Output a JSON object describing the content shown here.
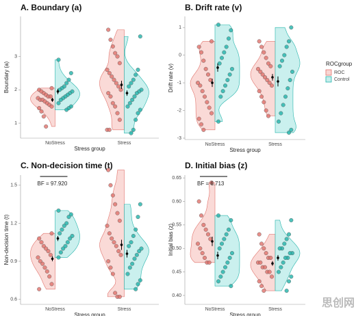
{
  "chart_data": [
    {
      "type": "raincloud",
      "title": "A. Boundary (a)",
      "xlabel": "Stress group",
      "ylabel": "Boundary (a)",
      "categories": [
        "NoStress",
        "Stress"
      ],
      "ylim": [
        0.55,
        4.2
      ],
      "yticks": [
        1,
        2,
        3
      ],
      "series": [
        {
          "color": "#e0726b",
          "fill": "#f9d6d3",
          "values": [
            [
              2.05,
              2.0,
              1.95,
              1.9,
              1.85,
              1.8,
              1.8,
              1.75,
              1.7,
              1.7,
              1.65,
              1.6,
              1.55,
              1.5,
              1.45,
              1.35,
              1.2,
              0.9
            ],
            [
              3.8,
              3.5,
              3.3,
              3.1,
              3.0,
              2.8,
              2.6,
              2.5,
              2.4,
              2.3,
              2.2,
              2.1,
              2.0,
              1.9,
              1.8,
              1.6,
              1.5,
              1.3,
              1.1,
              0.8,
              0.8
            ]
          ],
          "means": [
            1.7,
            2.15
          ],
          "errors": [
            0.06,
            0.12
          ]
        },
        {
          "color": "#22b3aa",
          "fill": "#c4eeec",
          "values": [
            [
              2.9,
              2.5,
              2.3,
              2.2,
              2.1,
              2.05,
              2.0,
              1.95,
              1.9,
              1.85,
              1.8,
              1.75,
              1.7,
              1.6,
              1.5,
              1.45,
              1.4
            ],
            [
              3.6,
              2.6,
              2.45,
              2.3,
              2.2,
              2.1,
              2.0,
              1.95,
              1.9,
              1.8,
              1.7,
              1.6,
              1.5,
              1.4,
              1.3,
              1.1,
              0.8,
              0.7
            ]
          ],
          "means": [
            1.95,
            1.9
          ],
          "errors": [
            0.08,
            0.08
          ]
        }
      ]
    },
    {
      "type": "raincloud",
      "title": "B. Drift rate (v)",
      "xlabel": "Stress group",
      "ylabel": "Drift rate (v)",
      "categories": [
        "NoStress",
        "Stress"
      ],
      "ylim": [
        -3.05,
        1.4
      ],
      "yticks": [
        -3,
        -2,
        -1,
        0,
        1
      ],
      "series": [
        {
          "color": "#e0726b",
          "fill": "#f9d6d3",
          "values": [
            [
              0.5,
              0.3,
              0.1,
              -0.2,
              -0.5,
              -0.7,
              -0.9,
              -1.0,
              -1.1,
              -1.3,
              -1.5,
              -1.7,
              -1.9,
              -2.1,
              -2.3,
              -2.5,
              -2.7
            ],
            [
              0.5,
              0.3,
              0.1,
              -0.1,
              -0.3,
              -0.4,
              -0.5,
              -0.6,
              -0.7,
              -0.8,
              -0.9,
              -1.0,
              -1.1,
              -1.3,
              -1.5,
              -1.7,
              -2.0,
              -2.2
            ]
          ],
          "means": [
            -1.0,
            -0.8
          ],
          "errors": [
            0.15,
            0.12
          ]
        },
        {
          "color": "#22b3aa",
          "fill": "#c4eeec",
          "values": [
            [
              1.1,
              0.9,
              0.6,
              0.3,
              0.1,
              -0.1,
              -0.3,
              -0.5,
              -0.7,
              -0.9,
              -1.1,
              -1.3,
              -1.5,
              -2.4
            ],
            [
              1.0,
              0.5,
              0.3,
              0.0,
              -0.2,
              -0.4,
              -0.6,
              -0.9,
              -1.2,
              -1.5,
              -1.8,
              -2.1,
              -2.4,
              -2.7,
              -2.8
            ]
          ],
          "means": [
            -0.45,
            -0.95
          ],
          "errors": [
            0.15,
            0.18
          ]
        }
      ]
    },
    {
      "type": "raincloud",
      "title": "C. Non-decision time (t)",
      "xlabel": "Stress group",
      "ylabel": "Non-decision time (t)",
      "categories": [
        "NoStress",
        "Stress"
      ],
      "ylim": [
        0.56,
        1.58
      ],
      "yticks": [
        0.6,
        0.9,
        1.2,
        1.5
      ],
      "annotation": "BF = 97.920",
      "series": [
        {
          "color": "#e0726b",
          "fill": "#f9d6d3",
          "values": [
            [
              1.12,
              1.08,
              1.05,
              1.02,
              1.0,
              0.98,
              0.95,
              0.93,
              0.9,
              0.88,
              0.85,
              0.82,
              0.78,
              0.72,
              0.68
            ],
            [
              1.62,
              1.5,
              1.42,
              1.35,
              1.28,
              1.22,
              1.18,
              1.12,
              1.08,
              1.05,
              1.02,
              0.98,
              0.95,
              0.9,
              0.85,
              0.8,
              0.65,
              0.62,
              0.62
            ]
          ],
          "means": [
            0.92,
            1.03
          ],
          "errors": [
            0.02,
            0.04
          ]
        },
        {
          "color": "#22b3aa",
          "fill": "#c4eeec",
          "values": [
            [
              1.3,
              1.27,
              1.25,
              1.2,
              1.18,
              1.15,
              1.12,
              1.1,
              1.08,
              1.05,
              1.02,
              1.0,
              0.97,
              0.93
            ],
            [
              1.35,
              1.25,
              1.15,
              1.1,
              1.05,
              1.02,
              1.0,
              0.98,
              0.95,
              0.92,
              0.88,
              0.85,
              0.8,
              0.75,
              0.72,
              0.68
            ]
          ],
          "means": [
            1.08,
            0.96
          ],
          "errors": [
            0.02,
            0.03
          ]
        }
      ]
    },
    {
      "type": "raincloud",
      "title": "D. Initial bias (z)",
      "xlabel": "Stress group",
      "ylabel": "Initial bias (z)",
      "categories": [
        "NoStress",
        "Stress"
      ],
      "ylim": [
        0.381,
        0.656
      ],
      "yticks": [
        {
          "value": 0.4,
          "label": "0.40"
        },
        0.45,
        {
          "value": 0.5,
          "label": "0.50"
        },
        0.55,
        {
          "value": 0.6,
          "label": "0.60"
        },
        0.65
      ],
      "annotation": "BF = 6.713",
      "series": [
        {
          "color": "#e0726b",
          "fill": "#f9d6d3",
          "values": [
            [
              0.64,
              0.6,
              0.57,
              0.55,
              0.54,
              0.53,
              0.52,
              0.51,
              0.5,
              0.49,
              0.48,
              0.47,
              0.47
            ],
            [
              0.53,
              0.51,
              0.5,
              0.49,
              0.48,
              0.48,
              0.47,
              0.47,
              0.46,
              0.46,
              0.45,
              0.45,
              0.44,
              0.43,
              0.42,
              0.41
            ]
          ],
          "means": [
            0.515,
            0.468
          ],
          "errors": [
            0.01,
            0.005
          ]
        },
        {
          "color": "#22b3aa",
          "fill": "#c4eeec",
          "values": [
            [
              0.57,
              0.56,
              0.54,
              0.53,
              0.52,
              0.51,
              0.5,
              0.49,
              0.48,
              0.47,
              0.46,
              0.45,
              0.44,
              0.43,
              0.42
            ],
            [
              0.56,
              0.53,
              0.52,
              0.51,
              0.5,
              0.5,
              0.49,
              0.49,
              0.48,
              0.48,
              0.47,
              0.46,
              0.45,
              0.44,
              0.43,
              0.41
            ]
          ],
          "means": [
            0.485,
            0.48
          ],
          "errors": [
            0.008,
            0.006
          ]
        }
      ]
    }
  ],
  "legend": {
    "title": "ROCgroup",
    "names": [
      "ROC",
      "Control"
    ],
    "colors": [
      "#f9d6d3",
      "#c4eeec"
    ],
    "borders": [
      "#e0726b",
      "#22b3aa"
    ]
  },
  "watermark": "思创网"
}
